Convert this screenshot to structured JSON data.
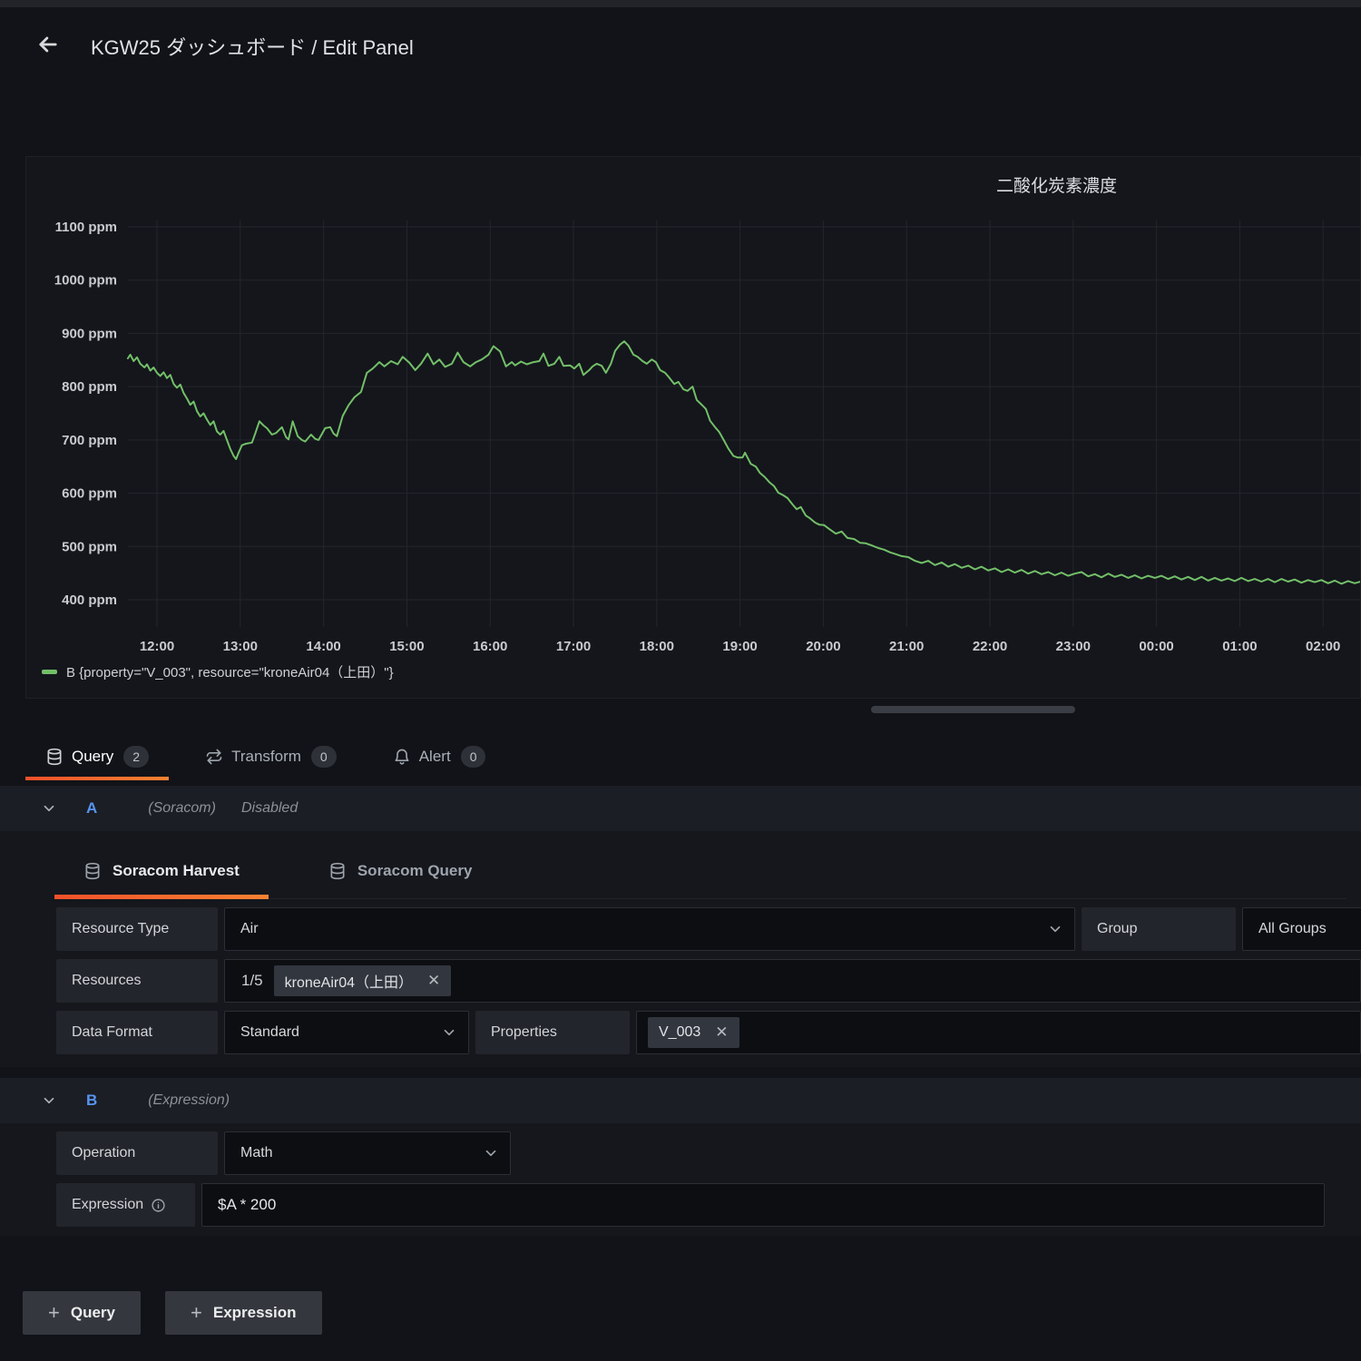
{
  "header": {
    "title": "KGW25 ダッシュボード / Edit Panel"
  },
  "panel": {
    "title": "二酸化炭素濃度"
  },
  "chart_data": {
    "type": "line",
    "title": "二酸化炭素濃度",
    "series": [
      {
        "name": "B {property=\"V_003\", resource=\"kroneAir04（上田）\"}",
        "color": "#73bf69"
      }
    ],
    "x_axis": "time",
    "x_ticks": [
      [
        12,
        "12:00"
      ],
      [
        13,
        "13:00"
      ],
      [
        14,
        "14:00"
      ],
      [
        15,
        "15:00"
      ],
      [
        16,
        "16:00"
      ],
      [
        17,
        "17:00"
      ],
      [
        18,
        "18:00"
      ],
      [
        19,
        "19:00"
      ],
      [
        20,
        "20:00"
      ],
      [
        21,
        "21:00"
      ],
      [
        22,
        "22:00"
      ],
      [
        23,
        "23:00"
      ],
      [
        24,
        "00:00"
      ],
      [
        25,
        "01:00"
      ],
      [
        26,
        "02:00"
      ]
    ],
    "y_ticks": [
      [
        400,
        "400 ppm"
      ],
      [
        500,
        "500 ppm"
      ],
      [
        600,
        "600 ppm"
      ],
      [
        700,
        "700 ppm"
      ],
      [
        800,
        "800 ppm"
      ],
      [
        900,
        "900 ppm"
      ],
      [
        1000,
        "1000 ppm"
      ],
      [
        1100,
        "1100 ppm"
      ]
    ],
    "y_range": [
      380,
      1140
    ],
    "grid": true,
    "legend_position": "bottom-left",
    "points": [
      [
        11.65,
        853
      ],
      [
        11.68,
        860
      ],
      [
        11.72,
        848
      ],
      [
        11.76,
        855
      ],
      [
        11.8,
        843
      ],
      [
        11.85,
        836
      ],
      [
        11.88,
        842
      ],
      [
        11.92,
        830
      ],
      [
        11.96,
        836
      ],
      [
        12.0,
        826
      ],
      [
        12.04,
        820
      ],
      [
        12.08,
        827
      ],
      [
        12.12,
        816
      ],
      [
        12.16,
        822
      ],
      [
        12.2,
        805
      ],
      [
        12.24,
        798
      ],
      [
        12.28,
        804
      ],
      [
        12.32,
        788
      ],
      [
        12.36,
        778
      ],
      [
        12.4,
        766
      ],
      [
        12.44,
        772
      ],
      [
        12.48,
        754
      ],
      [
        12.52,
        744
      ],
      [
        12.56,
        750
      ],
      [
        12.6,
        738
      ],
      [
        12.64,
        728
      ],
      [
        12.68,
        735
      ],
      [
        12.72,
        716
      ],
      [
        12.76,
        710
      ],
      [
        12.8,
        717
      ],
      [
        12.84,
        700
      ],
      [
        12.88,
        683
      ],
      [
        12.92,
        670
      ],
      [
        12.95,
        664
      ],
      [
        12.98,
        676
      ],
      [
        13.02,
        690
      ],
      [
        13.07,
        693
      ],
      [
        13.14,
        695
      ],
      [
        13.18,
        712
      ],
      [
        13.23,
        735
      ],
      [
        13.28,
        727
      ],
      [
        13.32,
        722
      ],
      [
        13.38,
        710
      ],
      [
        13.43,
        713
      ],
      [
        13.5,
        724
      ],
      [
        13.55,
        705
      ],
      [
        13.58,
        701
      ],
      [
        13.63,
        735
      ],
      [
        13.69,
        707
      ],
      [
        13.74,
        700
      ],
      [
        13.78,
        697
      ],
      [
        13.85,
        710
      ],
      [
        13.9,
        702
      ],
      [
        13.94,
        700
      ],
      [
        14.02,
        722
      ],
      [
        14.08,
        724
      ],
      [
        14.12,
        712
      ],
      [
        14.16,
        707
      ],
      [
        14.23,
        745
      ],
      [
        14.3,
        765
      ],
      [
        14.37,
        780
      ],
      [
        14.45,
        790
      ],
      [
        14.52,
        826
      ],
      [
        14.59,
        834
      ],
      [
        14.67,
        846
      ],
      [
        14.73,
        838
      ],
      [
        14.81,
        848
      ],
      [
        14.89,
        842
      ],
      [
        14.95,
        856
      ],
      [
        15.03,
        845
      ],
      [
        15.1,
        831
      ],
      [
        15.17,
        843
      ],
      [
        15.25,
        862
      ],
      [
        15.32,
        842
      ],
      [
        15.39,
        851
      ],
      [
        15.46,
        837
      ],
      [
        15.54,
        843
      ],
      [
        15.61,
        864
      ],
      [
        15.68,
        846
      ],
      [
        15.76,
        838
      ],
      [
        15.83,
        846
      ],
      [
        15.9,
        851
      ],
      [
        15.98,
        860
      ],
      [
        16.04,
        876
      ],
      [
        16.12,
        866
      ],
      [
        16.19,
        838
      ],
      [
        16.26,
        846
      ],
      [
        16.3,
        840
      ],
      [
        16.37,
        847
      ],
      [
        16.44,
        842
      ],
      [
        16.52,
        846
      ],
      [
        16.59,
        848
      ],
      [
        16.64,
        862
      ],
      [
        16.7,
        839
      ],
      [
        16.77,
        843
      ],
      [
        16.83,
        856
      ],
      [
        16.88,
        839
      ],
      [
        16.96,
        840
      ],
      [
        17.01,
        834
      ],
      [
        17.07,
        843
      ],
      [
        17.12,
        822
      ],
      [
        17.19,
        831
      ],
      [
        17.23,
        838
      ],
      [
        17.28,
        843
      ],
      [
        17.34,
        839
      ],
      [
        17.39,
        826
      ],
      [
        17.45,
        843
      ],
      [
        17.5,
        867
      ],
      [
        17.56,
        879
      ],
      [
        17.61,
        885
      ],
      [
        17.66,
        877
      ],
      [
        17.72,
        860
      ],
      [
        17.77,
        856
      ],
      [
        17.83,
        848
      ],
      [
        17.88,
        843
      ],
      [
        17.94,
        851
      ],
      [
        17.99,
        846
      ],
      [
        18.04,
        831
      ],
      [
        18.1,
        826
      ],
      [
        18.15,
        817
      ],
      [
        18.21,
        805
      ],
      [
        18.26,
        809
      ],
      [
        18.32,
        795
      ],
      [
        18.37,
        792
      ],
      [
        18.43,
        800
      ],
      [
        18.48,
        775
      ],
      [
        18.54,
        766
      ],
      [
        18.59,
        758
      ],
      [
        18.64,
        736
      ],
      [
        18.7,
        724
      ],
      [
        18.75,
        715
      ],
      [
        18.81,
        698
      ],
      [
        18.86,
        684
      ],
      [
        18.92,
        670
      ],
      [
        18.97,
        667
      ],
      [
        19.03,
        667
      ],
      [
        19.06,
        676
      ],
      [
        19.13,
        655
      ],
      [
        19.19,
        650
      ],
      [
        19.24,
        638
      ],
      [
        19.3,
        630
      ],
      [
        19.35,
        621
      ],
      [
        19.41,
        613
      ],
      [
        19.46,
        601
      ],
      [
        19.52,
        596
      ],
      [
        19.57,
        591
      ],
      [
        19.63,
        579
      ],
      [
        19.68,
        570
      ],
      [
        19.73,
        574
      ],
      [
        19.79,
        558
      ],
      [
        19.84,
        553
      ],
      [
        19.9,
        545
      ],
      [
        19.95,
        541
      ],
      [
        20.01,
        540
      ],
      [
        20.07,
        533
      ],
      [
        20.15,
        524
      ],
      [
        20.22,
        528
      ],
      [
        20.29,
        516
      ],
      [
        20.37,
        514
      ],
      [
        20.44,
        507
      ],
      [
        20.51,
        506
      ],
      [
        20.58,
        502
      ],
      [
        20.66,
        497
      ],
      [
        20.73,
        494
      ],
      [
        20.8,
        489
      ],
      [
        20.88,
        485
      ],
      [
        20.94,
        482
      ],
      [
        21.02,
        480
      ],
      [
        21.1,
        473
      ],
      [
        21.18,
        469
      ],
      [
        21.26,
        473
      ],
      [
        21.34,
        465
      ],
      [
        21.42,
        470
      ],
      [
        21.5,
        462
      ],
      [
        21.58,
        467
      ],
      [
        21.66,
        460
      ],
      [
        21.74,
        464
      ],
      [
        21.82,
        457
      ],
      [
        21.9,
        462
      ],
      [
        21.98,
        455
      ],
      [
        22.06,
        459
      ],
      [
        22.14,
        452
      ],
      [
        22.22,
        457
      ],
      [
        22.3,
        451
      ],
      [
        22.38,
        456
      ],
      [
        22.46,
        449
      ],
      [
        22.54,
        454
      ],
      [
        22.62,
        448
      ],
      [
        22.7,
        452
      ],
      [
        22.78,
        446
      ],
      [
        22.86,
        451
      ],
      [
        22.94,
        445
      ],
      [
        23.02,
        449
      ],
      [
        23.1,
        452
      ],
      [
        23.18,
        444
      ],
      [
        23.26,
        448
      ],
      [
        23.34,
        442
      ],
      [
        23.42,
        449
      ],
      [
        23.5,
        443
      ],
      [
        23.58,
        447
      ],
      [
        23.66,
        441
      ],
      [
        23.74,
        446
      ],
      [
        23.82,
        440
      ],
      [
        23.9,
        445
      ],
      [
        23.98,
        441
      ],
      [
        24.06,
        445
      ],
      [
        24.14,
        439
      ],
      [
        24.22,
        444
      ],
      [
        24.3,
        438
      ],
      [
        24.38,
        443
      ],
      [
        24.46,
        437
      ],
      [
        24.54,
        443
      ],
      [
        24.62,
        436
      ],
      [
        24.7,
        441
      ],
      [
        24.78,
        436
      ],
      [
        24.86,
        440
      ],
      [
        24.94,
        435
      ],
      [
        25.02,
        441
      ],
      [
        25.1,
        435
      ],
      [
        25.18,
        439
      ],
      [
        25.26,
        434
      ],
      [
        25.34,
        439
      ],
      [
        25.42,
        433
      ],
      [
        25.5,
        439
      ],
      [
        25.58,
        434
      ],
      [
        25.66,
        438
      ],
      [
        25.74,
        432
      ],
      [
        25.82,
        437
      ],
      [
        25.9,
        433
      ],
      [
        25.98,
        437
      ],
      [
        26.06,
        431
      ],
      [
        26.14,
        436
      ],
      [
        26.22,
        430
      ],
      [
        26.3,
        435
      ],
      [
        26.38,
        431
      ],
      [
        26.45,
        434
      ]
    ]
  },
  "tabs": [
    {
      "label": "Query",
      "count": "2"
    },
    {
      "label": "Transform",
      "count": "0"
    },
    {
      "label": "Alert",
      "count": "0"
    }
  ],
  "query_a": {
    "letter": "A",
    "datasource": "(Soracom)",
    "status": "Disabled",
    "subtab_harvest": "Soracom Harvest",
    "subtab_query": "Soracom Query",
    "resource_type_label": "Resource Type",
    "resource_type_value": "Air",
    "group_label": "Group",
    "group_value": "All Groups",
    "resources_label": "Resources",
    "resources_count": "1/5",
    "resources_chip": "kroneAir04（上田）",
    "data_format_label": "Data Format",
    "data_format_value": "Standard",
    "properties_label": "Properties",
    "properties_chip": "V_003"
  },
  "query_b": {
    "letter": "B",
    "datasource": "(Expression)",
    "operation_label": "Operation",
    "operation_value": "Math",
    "expression_label": "Expression",
    "expression_value": "$A * 200"
  },
  "footer": {
    "add_query_label": "Query",
    "add_expression_label": "Expression"
  },
  "colors": {
    "accent_orange_start": "#f4502a",
    "accent_orange_end": "#fb8232",
    "series_green": "#73bf69",
    "ref_blue": "#5794f2"
  }
}
